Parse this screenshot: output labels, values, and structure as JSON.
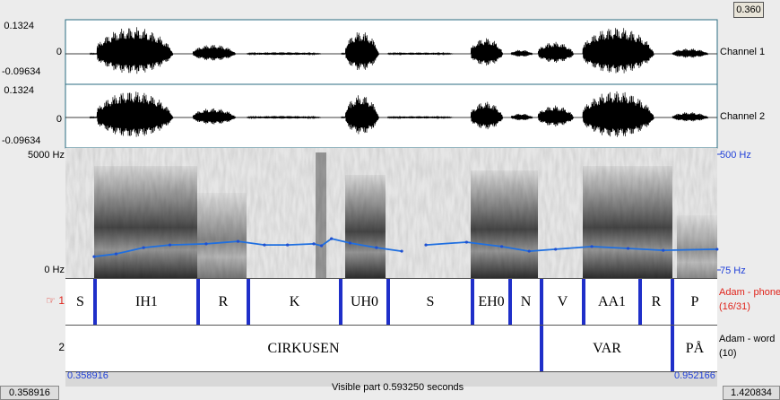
{
  "header": {
    "selection_duration": "0.360"
  },
  "channels": [
    {
      "label": "Channel 1",
      "max": "0.1324",
      "zero": "0",
      "min": "-0.09634"
    },
    {
      "label": "Channel 2",
      "max": "0.1324",
      "zero": "0",
      "min": "-0.09634"
    }
  ],
  "spectrogram": {
    "top": "5000 Hz",
    "bottom": "0 Hz"
  },
  "pitch": {
    "xlim": [
      0.358916,
      0.952166
    ],
    "ylim": [
      75,
      500
    ],
    "yticks": [
      {
        "value": 500,
        "label": "500 Hz"
      },
      {
        "value": 75,
        "label": "75 Hz"
      }
    ],
    "x": [
      0.385,
      0.405,
      0.43,
      0.454,
      0.487,
      0.516,
      0.54,
      0.561,
      0.585,
      0.592,
      0.601,
      0.618,
      0.642,
      0.665,
      0.676,
      0.687,
      0.724,
      0.756,
      0.781,
      0.805,
      0.838,
      0.871,
      0.903,
      0.952
    ],
    "values": [
      124,
      134,
      157,
      167,
      171,
      180,
      167,
      167,
      171,
      164,
      190,
      174,
      157,
      144,
      null,
      167,
      177,
      161,
      144,
      151,
      161,
      154,
      147,
      151
    ]
  },
  "tiers": [
    {
      "number": "1",
      "name": "Adam - phone",
      "count": "(16/31)",
      "intervals": [
        "S",
        "IH1",
        "R",
        "K",
        "UH0",
        "S",
        "EH0",
        "N",
        "V",
        "AA1",
        "R",
        "P"
      ]
    },
    {
      "number": "2",
      "name": "Adam - word",
      "count": "(10)",
      "intervals": [
        "CIRKUSEN",
        "VAR",
        "PÅ"
      ]
    }
  ],
  "footer": {
    "window_start": "0.358916",
    "window_end": "0.952166",
    "visible": "Visible part 0.593250 seconds",
    "total_start": "0.358916",
    "total_end": "1.420834"
  }
}
